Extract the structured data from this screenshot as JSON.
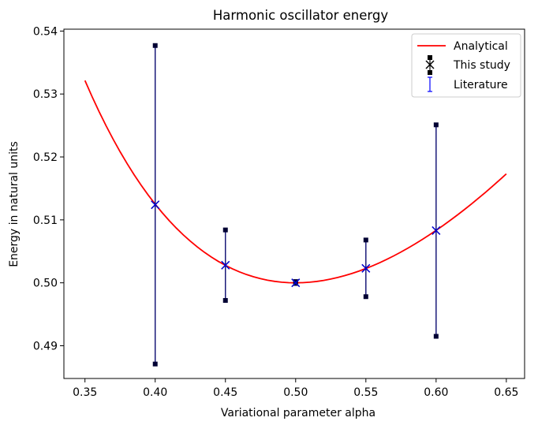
{
  "chart_data": {
    "type": "line",
    "title": "Harmonic oscillator energy",
    "xlabel": "Variational parameter alpha",
    "ylabel": "Energy in natural units",
    "xlim": [
      0.335,
      0.663
    ],
    "ylim": [
      0.4848,
      0.5403
    ],
    "xticks": [
      0.35,
      0.4,
      0.45,
      0.5,
      0.55,
      0.6,
      0.65
    ],
    "xtick_labels": [
      "0.35",
      "0.40",
      "0.45",
      "0.50",
      "0.55",
      "0.60",
      "0.65"
    ],
    "yticks": [
      0.49,
      0.5,
      0.51,
      0.52,
      0.53,
      0.54
    ],
    "ytick_labels": [
      "0.49",
      "0.50",
      "0.51",
      "0.52",
      "0.53",
      "0.54"
    ],
    "grid": false,
    "legend": "top-right",
    "series": [
      {
        "name": "Analytical",
        "kind": "line",
        "color": "#ff0000",
        "x": [
          0.35,
          0.36,
          0.37,
          0.38,
          0.39,
          0.4,
          0.41,
          0.42,
          0.43,
          0.44,
          0.45,
          0.46,
          0.47,
          0.48,
          0.49,
          0.5,
          0.51,
          0.52,
          0.53,
          0.54,
          0.55,
          0.56,
          0.57,
          0.58,
          0.59,
          0.6,
          0.61,
          0.62,
          0.63,
          0.64,
          0.65
        ],
        "y": [
          0.5321,
          0.5272,
          0.5229,
          0.519,
          0.5155,
          0.5125,
          0.5098,
          0.5075,
          0.5055,
          0.5038,
          0.5025,
          0.5014,
          0.5006,
          0.5001,
          0.5,
          0.5,
          0.5002,
          0.5008,
          0.5015,
          0.5025,
          0.5027,
          0.5048,
          0.5063,
          0.508,
          0.5099,
          0.5083,
          0.514,
          0.5164,
          0.519,
          0.5216,
          0.5173
        ]
      },
      {
        "name": "This study",
        "kind": "errorbar",
        "color": "#000000",
        "x": [
          0.4,
          0.45,
          0.5,
          0.55,
          0.6
        ],
        "y": [
          0.5124,
          0.5028,
          0.5,
          0.5023,
          0.5083
        ],
        "yerr_low": [
          0.4871,
          0.4972,
          0.4999,
          0.4978,
          0.4915
        ],
        "yerr_high": [
          0.5377,
          0.5084,
          0.5002,
          0.5068,
          0.5251
        ]
      },
      {
        "name": "Literature",
        "kind": "errorbar",
        "color": "#0000ff",
        "x": [
          0.4,
          0.45,
          0.5,
          0.55,
          0.6
        ],
        "y": [
          0.5124,
          0.5028,
          0.5,
          0.5023,
          0.5083
        ],
        "yerr_low": [
          0.4871,
          0.4972,
          0.4999,
          0.4978,
          0.4915
        ],
        "yerr_high": [
          0.5377,
          0.5084,
          0.5002,
          0.5068,
          0.5251
        ]
      }
    ]
  }
}
